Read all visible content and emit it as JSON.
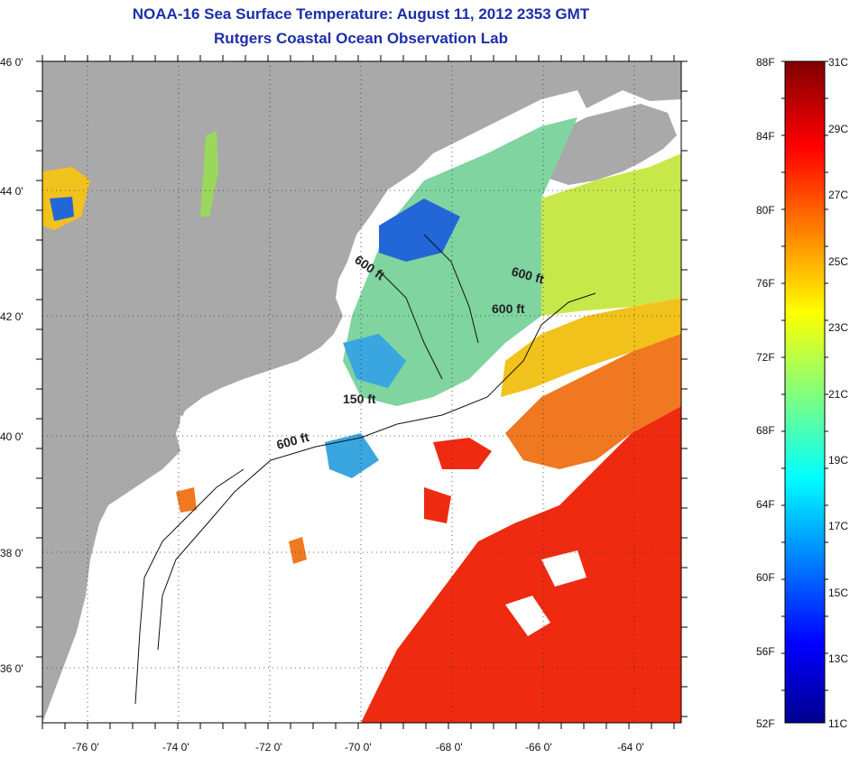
{
  "title": "NOAA-16 Sea Surface Temperature:  August 11, 2012 2353 GMT",
  "subtitle": "Rutgers Coastal Ocean Observation Lab",
  "map": {
    "lat_ticks": [
      "46 0'",
      "44 0'",
      "42 0'",
      "40 0'",
      "38 0'",
      "36 0'"
    ],
    "lon_ticks": [
      "-76 0'",
      "-74 0'",
      "-72 0'",
      "-70 0'",
      "-68 0'",
      "-66 0'",
      "-64 0'"
    ],
    "contour_labels": [
      "600 ft",
      "600 ft",
      "600 ft",
      "150 ft",
      "600 ft"
    ],
    "colors": {
      "land": "#a9a9a9",
      "no_data": "#ffffff",
      "warm": "#ee2a10",
      "mid": "#f2c21c",
      "cool": "#7fd4a0",
      "cold": "#2266d8"
    }
  },
  "colorbar": {
    "f_labels": [
      "88F",
      "84F",
      "80F",
      "76F",
      "72F",
      "68F",
      "64F",
      "60F",
      "56F",
      "52F"
    ],
    "c_labels": [
      "31C",
      "29C",
      "27C",
      "25C",
      "23C",
      "21C",
      "19C",
      "17C",
      "15C",
      "13C",
      "11C"
    ]
  }
}
